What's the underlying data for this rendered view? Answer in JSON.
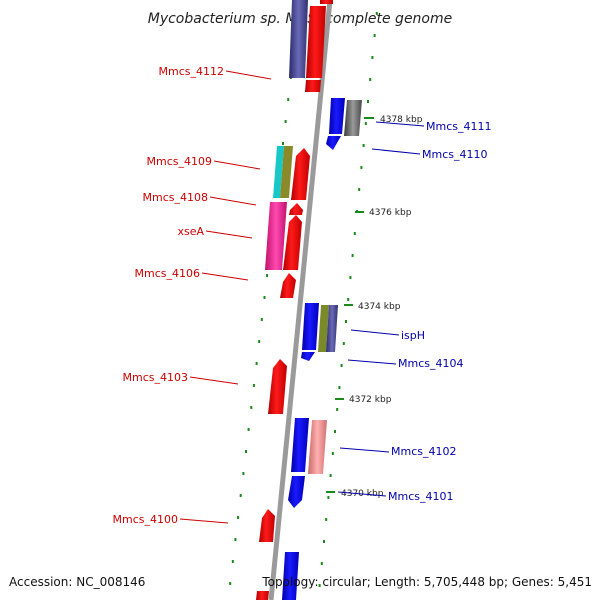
{
  "title": "Mycobacterium sp. MCS, complete genome",
  "footer": {
    "accession": "Accession: NC_008146",
    "summary": "Topology: circular; Length: 5,705,448 bp; Genes: 5,451"
  },
  "colors": {
    "forward_gene": "#ff0000",
    "reverse_gene": "#0000ff",
    "forward_label": "#cc0000",
    "reverse_label": "#0000aa",
    "backbone": "#9a9a9a",
    "gc_dots": "#1a8a1a"
  },
  "ticks": [
    {
      "label": "4378 kbp"
    },
    {
      "label": "4376 kbp"
    },
    {
      "label": "4374 kbp"
    },
    {
      "label": "4372 kbp"
    },
    {
      "label": "4370 kbp"
    }
  ],
  "forward_labels": [
    {
      "text": "Mmcs_4112"
    },
    {
      "text": "Mmcs_4109"
    },
    {
      "text": "Mmcs_4108"
    },
    {
      "text": "xseA"
    },
    {
      "text": "Mmcs_4106"
    },
    {
      "text": "Mmcs_4103"
    },
    {
      "text": "Mmcs_4100"
    }
  ],
  "reverse_labels": [
    {
      "text": "Mmcs_4111"
    },
    {
      "text": "Mmcs_4110"
    },
    {
      "text": "ispH"
    },
    {
      "text": "Mmcs_4104"
    },
    {
      "text": "Mmcs_4102"
    },
    {
      "text": "Mmcs_4101"
    }
  ],
  "gene_features": [
    {
      "id": "mmcs4112-feature",
      "color": "#ff0000"
    },
    {
      "id": "mmcs4111-feature",
      "color": "#0000ff"
    },
    {
      "id": "mmcs4110-feature",
      "color": "#555555"
    },
    {
      "id": "mmcs4109-feature",
      "color": "#ff0000"
    },
    {
      "id": "mmcs4108-feature",
      "color": "#ff0000"
    },
    {
      "id": "xsea-feature",
      "color": "#ff0000"
    },
    {
      "id": "mmcs4106-feature",
      "color": "#ff0000"
    },
    {
      "id": "isph-feature",
      "color": "#0000ff"
    },
    {
      "id": "mmcs4104-feature",
      "color": "#0000ff"
    },
    {
      "id": "mmcs4103-feature",
      "color": "#ff0000"
    },
    {
      "id": "mmcs4102-feature",
      "color": "#0000ff"
    },
    {
      "id": "mmcs4101-feature",
      "color": "#0000ff"
    },
    {
      "id": "mmcs4100-feature",
      "color": "#ff0000"
    }
  ]
}
